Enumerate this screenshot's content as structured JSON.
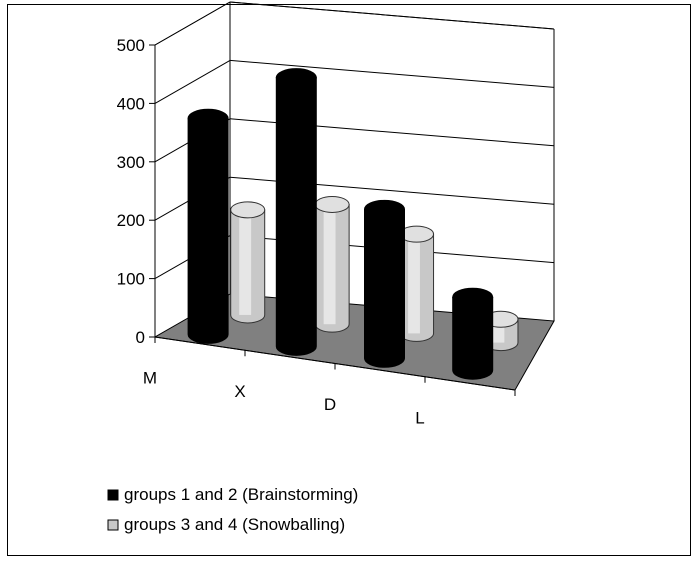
{
  "chart_data": {
    "type": "bar",
    "style": "3d-cylinder-clustered",
    "categories": [
      "M",
      "X",
      "D",
      "L"
    ],
    "series": [
      {
        "name": "groups 1 and 2 (Brainstorming)",
        "values": [
          370,
          460,
          255,
          125
        ],
        "color": "#000000"
      },
      {
        "name": "groups 3 and 4 (Snowballing)",
        "values": [
          180,
          205,
          170,
          40
        ],
        "color": "#c8c8c8"
      }
    ],
    "yticks": [
      0,
      100,
      200,
      300,
      400,
      500
    ],
    "ylim": [
      0,
      500
    ],
    "grid": true,
    "floor_color": "#808080",
    "legend_placement": "bottom-left"
  }
}
